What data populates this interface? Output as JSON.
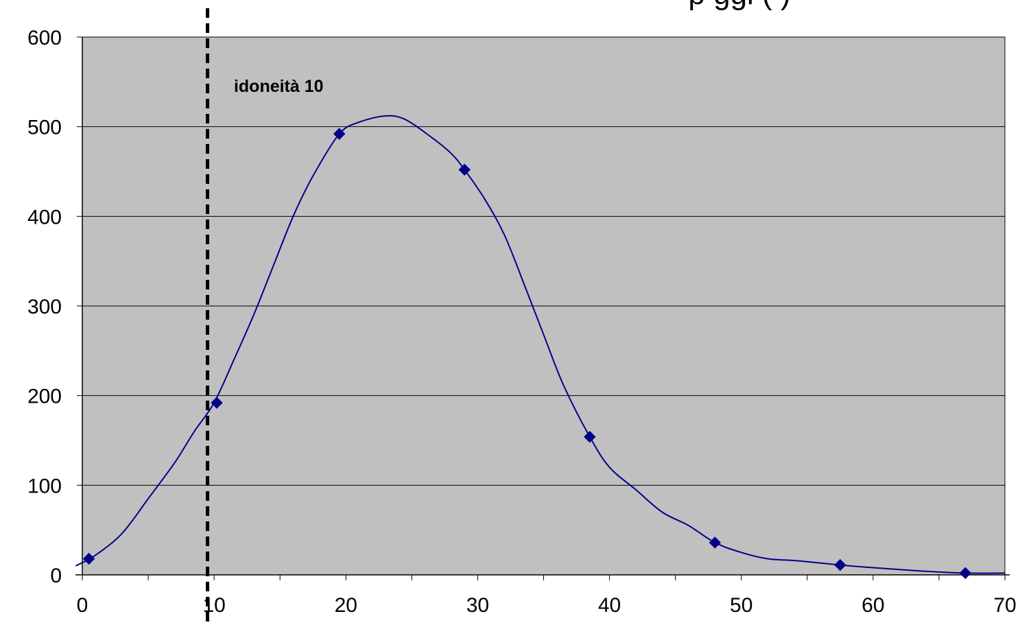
{
  "chart_data": {
    "type": "scatter",
    "title": "p  ggi                  (     )",
    "xlabel": "",
    "ylabel": "",
    "xlim": [
      0,
      70
    ],
    "ylim": [
      0,
      600
    ],
    "x_ticks": [
      0,
      10,
      20,
      30,
      40,
      50,
      60,
      70
    ],
    "y_ticks": [
      0,
      100,
      200,
      300,
      400,
      500,
      600
    ],
    "grid": {
      "horizontal": true,
      "vertical": false
    },
    "plot_background": "#c0c0c0",
    "series_color": "#00008b",
    "points": [
      {
        "x": 0.5,
        "y": 18
      },
      {
        "x": 10.2,
        "y": 192
      },
      {
        "x": 19.5,
        "y": 492
      },
      {
        "x": 29.0,
        "y": 452
      },
      {
        "x": 38.5,
        "y": 154
      },
      {
        "x": 48.0,
        "y": 36
      },
      {
        "x": 57.5,
        "y": 11
      },
      {
        "x": 67.0,
        "y": 2
      }
    ],
    "curve": [
      [
        -0.5,
        10
      ],
      [
        1,
        22
      ],
      [
        3,
        46
      ],
      [
        5,
        85
      ],
      [
        7,
        125
      ],
      [
        8.5,
        160
      ],
      [
        10,
        192
      ],
      [
        11.5,
        240
      ],
      [
        13,
        290
      ],
      [
        14.5,
        345
      ],
      [
        16,
        400
      ],
      [
        17.5,
        445
      ],
      [
        19.5,
        492
      ],
      [
        21,
        505
      ],
      [
        23,
        512
      ],
      [
        24.5,
        508
      ],
      [
        26.5,
        488
      ],
      [
        28,
        470
      ],
      [
        29,
        452
      ],
      [
        30.5,
        420
      ],
      [
        32,
        380
      ],
      [
        33.5,
        325
      ],
      [
        35,
        268
      ],
      [
        36.5,
        212
      ],
      [
        38.5,
        154
      ],
      [
        40,
        120
      ],
      [
        42,
        95
      ],
      [
        44,
        70
      ],
      [
        46,
        55
      ],
      [
        48,
        36
      ],
      [
        50,
        25
      ],
      [
        52,
        18
      ],
      [
        54,
        16
      ],
      [
        55.5,
        14
      ],
      [
        57.5,
        11
      ],
      [
        60,
        8
      ],
      [
        62,
        6
      ],
      [
        64,
        4
      ],
      [
        67,
        2
      ],
      [
        70,
        2
      ]
    ],
    "reference_line": {
      "x": 9.5,
      "label": "idoneità 10",
      "style": "dashed"
    }
  }
}
